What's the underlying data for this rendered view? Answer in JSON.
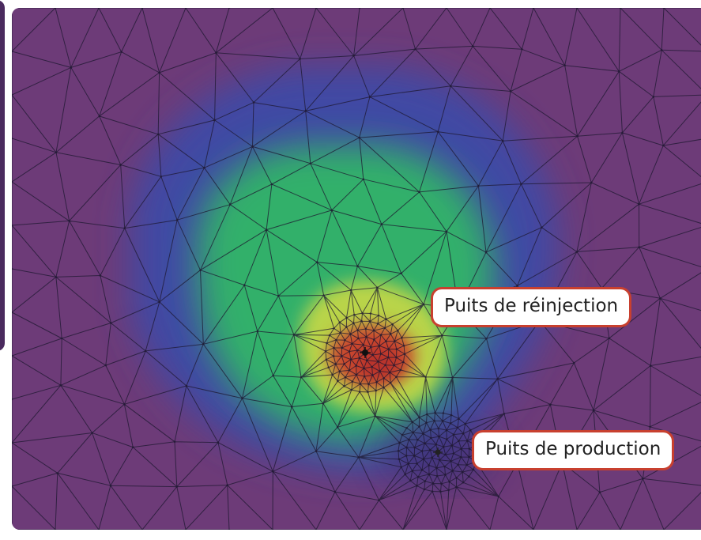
{
  "colors": {
    "background": "#6d3b78",
    "plume_outer": "#3b4fa8",
    "plume_mid": "#2fb57a",
    "plume_inner": "#c7d84a",
    "plume_core": "#c2452e",
    "mesh_lines": "#1e1830",
    "callout_border": "#c8402f"
  },
  "labels": {
    "injection_well": "Puits de réinjection",
    "production_well": "Puits de production"
  },
  "icons": {
    "injection_well_marker": "well-point-icon",
    "production_well_marker": "well-point-icon"
  }
}
